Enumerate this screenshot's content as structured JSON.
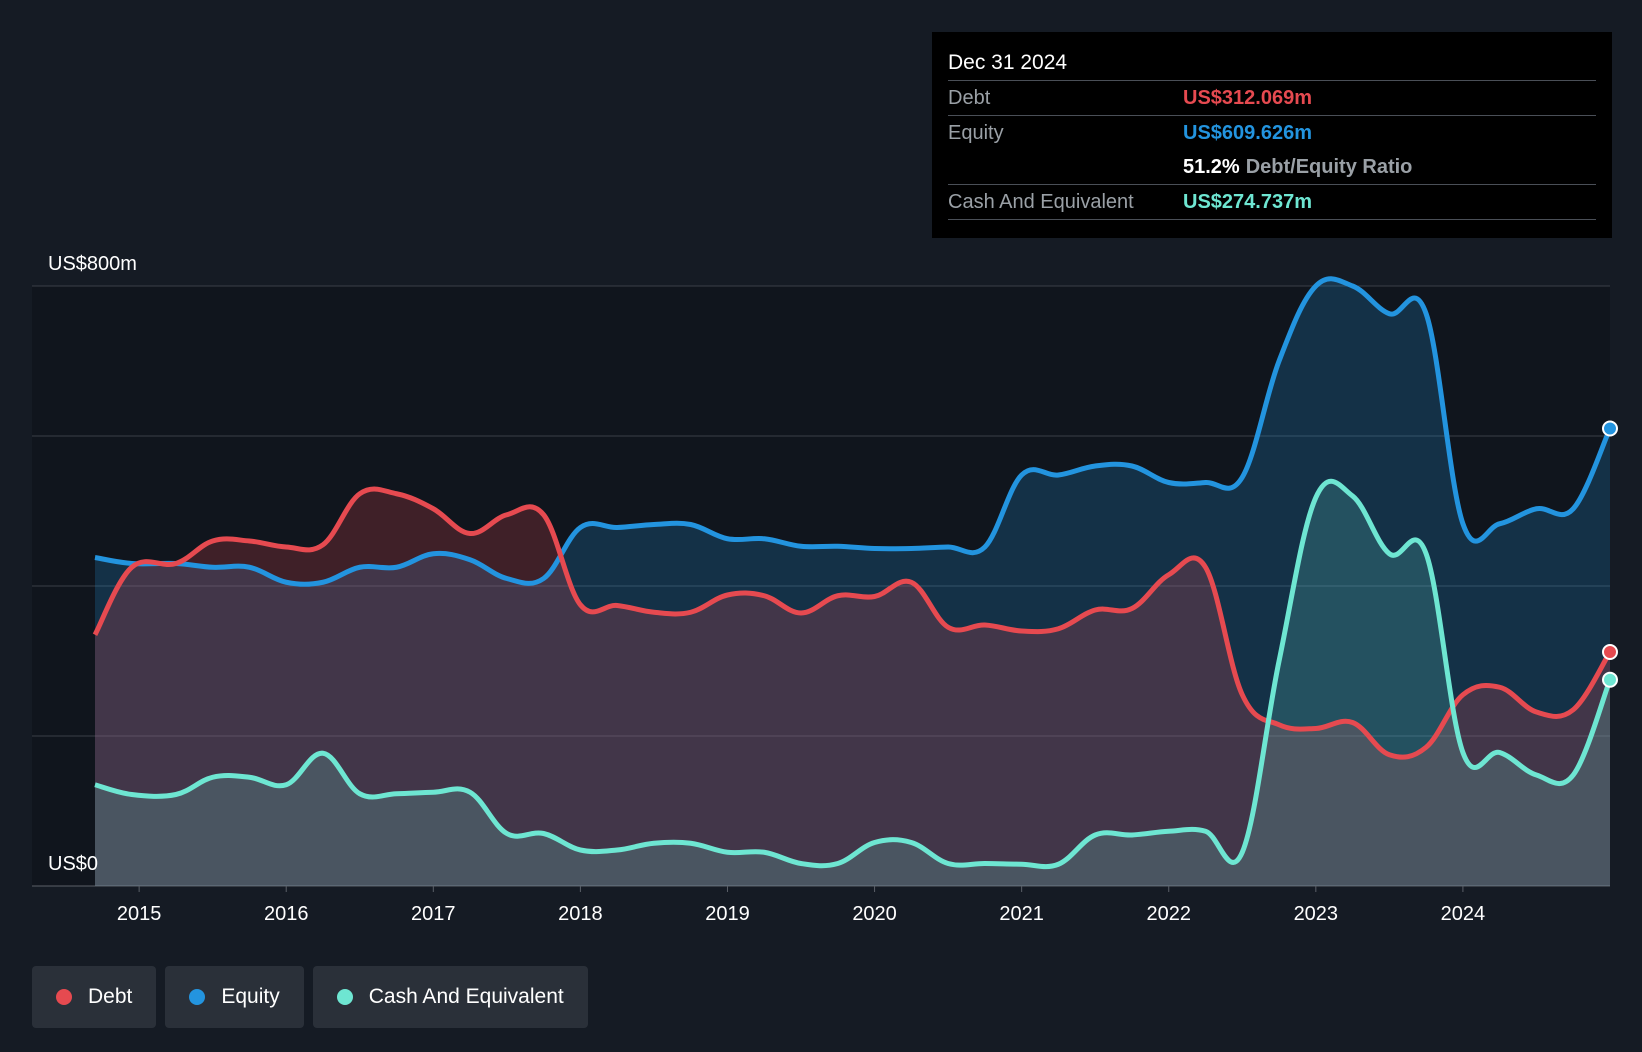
{
  "colors": {
    "debt": "#e64a50",
    "equity": "#2394df",
    "cash": "#6ee6d2"
  },
  "tooltip": {
    "date": "Dec 31 2024",
    "debt_label": "Debt",
    "debt_value": "US$312.069m",
    "equity_label": "Equity",
    "equity_value": "US$609.626m",
    "ratio_value": "51.2%",
    "ratio_label": "Debt/Equity Ratio",
    "cash_label": "Cash And Equivalent",
    "cash_value": "US$274.737m"
  },
  "legend": [
    {
      "label": "Debt",
      "color": "#e64a50"
    },
    {
      "label": "Equity",
      "color": "#2394df"
    },
    {
      "label": "Cash And Equivalent",
      "color": "#6ee6d2"
    }
  ],
  "chart_data": {
    "type": "area",
    "y_top_label": "US$800m",
    "y_bottom_label": "US$0",
    "ylim": [
      0,
      800
    ],
    "xlim": [
      2014.7,
      2025.0
    ],
    "x_ticks": [
      2015,
      2016,
      2017,
      2018,
      2019,
      2020,
      2021,
      2022,
      2023,
      2024
    ],
    "x_tick_labels": [
      "2015",
      "2016",
      "2017",
      "2018",
      "2019",
      "2020",
      "2021",
      "2022",
      "2023",
      "2024"
    ],
    "gridlines": [
      0,
      200,
      400,
      600,
      800
    ],
    "series": [
      {
        "name": "Debt",
        "points": [
          [
            2014.7,
            335
          ],
          [
            2014.95,
            425
          ],
          [
            2015.25,
            430
          ],
          [
            2015.5,
            460
          ],
          [
            2015.75,
            460
          ],
          [
            2016.0,
            452
          ],
          [
            2016.25,
            455
          ],
          [
            2016.5,
            523
          ],
          [
            2016.75,
            523
          ],
          [
            2017.0,
            503
          ],
          [
            2017.25,
            470
          ],
          [
            2017.5,
            495
          ],
          [
            2017.75,
            495
          ],
          [
            2018.0,
            375
          ],
          [
            2018.25,
            374
          ],
          [
            2018.5,
            365
          ],
          [
            2018.75,
            365
          ],
          [
            2019.0,
            388
          ],
          [
            2019.25,
            387
          ],
          [
            2019.5,
            364
          ],
          [
            2019.75,
            387
          ],
          [
            2020.0,
            386
          ],
          [
            2020.25,
            405
          ],
          [
            2020.5,
            345
          ],
          [
            2020.75,
            348
          ],
          [
            2021.0,
            340
          ],
          [
            2021.25,
            343
          ],
          [
            2021.5,
            368
          ],
          [
            2021.75,
            370
          ],
          [
            2022.0,
            415
          ],
          [
            2022.25,
            425
          ],
          [
            2022.5,
            255
          ],
          [
            2022.75,
            215
          ],
          [
            2023.0,
            210
          ],
          [
            2023.25,
            218
          ],
          [
            2023.5,
            175
          ],
          [
            2023.75,
            185
          ],
          [
            2024.0,
            255
          ],
          [
            2024.25,
            265
          ],
          [
            2024.5,
            232
          ],
          [
            2024.75,
            235
          ],
          [
            2025.0,
            312
          ]
        ]
      },
      {
        "name": "Equity",
        "points": [
          [
            2014.7,
            438
          ],
          [
            2014.95,
            430
          ],
          [
            2015.25,
            430
          ],
          [
            2015.5,
            425
          ],
          [
            2015.75,
            425
          ],
          [
            2016.0,
            405
          ],
          [
            2016.25,
            405
          ],
          [
            2016.5,
            425
          ],
          [
            2016.75,
            425
          ],
          [
            2017.0,
            443
          ],
          [
            2017.25,
            435
          ],
          [
            2017.5,
            410
          ],
          [
            2017.75,
            410
          ],
          [
            2018.0,
            478
          ],
          [
            2018.25,
            478
          ],
          [
            2018.5,
            482
          ],
          [
            2018.75,
            482
          ],
          [
            2019.0,
            463
          ],
          [
            2019.25,
            463
          ],
          [
            2019.5,
            453
          ],
          [
            2019.75,
            453
          ],
          [
            2020.0,
            450
          ],
          [
            2020.25,
            450
          ],
          [
            2020.5,
            452
          ],
          [
            2020.75,
            452
          ],
          [
            2021.0,
            548
          ],
          [
            2021.25,
            548
          ],
          [
            2021.5,
            560
          ],
          [
            2021.75,
            560
          ],
          [
            2022.0,
            538
          ],
          [
            2022.25,
            538
          ],
          [
            2022.5,
            545
          ],
          [
            2022.75,
            700
          ],
          [
            2023.0,
            800
          ],
          [
            2023.25,
            800
          ],
          [
            2023.5,
            763
          ],
          [
            2023.75,
            763
          ],
          [
            2024.0,
            483
          ],
          [
            2024.25,
            483
          ],
          [
            2024.5,
            503
          ],
          [
            2024.75,
            503
          ],
          [
            2025.0,
            610
          ]
        ]
      },
      {
        "name": "Cash And Equivalent",
        "points": [
          [
            2014.7,
            135
          ],
          [
            2014.95,
            122
          ],
          [
            2015.25,
            122
          ],
          [
            2015.5,
            145
          ],
          [
            2015.75,
            145
          ],
          [
            2016.0,
            135
          ],
          [
            2016.25,
            177
          ],
          [
            2016.5,
            123
          ],
          [
            2016.75,
            123
          ],
          [
            2017.0,
            125
          ],
          [
            2017.25,
            125
          ],
          [
            2017.5,
            70
          ],
          [
            2017.75,
            70
          ],
          [
            2018.0,
            48
          ],
          [
            2018.25,
            48
          ],
          [
            2018.5,
            57
          ],
          [
            2018.75,
            57
          ],
          [
            2019.0,
            45
          ],
          [
            2019.25,
            45
          ],
          [
            2019.5,
            30
          ],
          [
            2019.75,
            30
          ],
          [
            2020.0,
            58
          ],
          [
            2020.25,
            58
          ],
          [
            2020.5,
            30
          ],
          [
            2020.75,
            30
          ],
          [
            2021.0,
            29
          ],
          [
            2021.25,
            29
          ],
          [
            2021.5,
            68
          ],
          [
            2021.75,
            68
          ],
          [
            2022.0,
            73
          ],
          [
            2022.25,
            73
          ],
          [
            2022.5,
            45
          ],
          [
            2022.75,
            300
          ],
          [
            2023.0,
            518
          ],
          [
            2023.25,
            520
          ],
          [
            2023.5,
            443
          ],
          [
            2023.75,
            443
          ],
          [
            2024.0,
            178
          ],
          [
            2024.25,
            178
          ],
          [
            2024.5,
            148
          ],
          [
            2024.75,
            148
          ],
          [
            2025.0,
            275
          ]
        ]
      }
    ]
  }
}
